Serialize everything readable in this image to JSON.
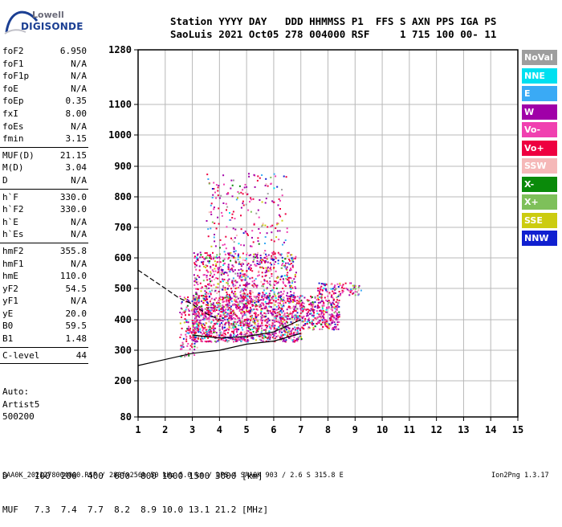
{
  "logo": {
    "line1": "Lowell",
    "line2": "DIGISONDE"
  },
  "header": {
    "line1": "Station YYYY DAY   DDD HHMMSS P1  FFS S AXN PPS IGA PS",
    "line2": "SaoLuis 2021 Oct05 278 004000 RSF     1 715 100 00- 11"
  },
  "params": [
    {
      "label": "foF2",
      "value": "6.950"
    },
    {
      "label": "foF1",
      "value": "N/A"
    },
    {
      "label": "foF1p",
      "value": "N/A"
    },
    {
      "label": "foE",
      "value": "N/A"
    },
    {
      "label": "foEp",
      "value": "0.35"
    },
    {
      "label": "fxI",
      "value": "8.00"
    },
    {
      "label": "foEs",
      "value": "N/A"
    },
    {
      "label": "fmin",
      "value": "3.15"
    },
    {
      "sep": true
    },
    {
      "label": "MUF(D)",
      "value": "21.15"
    },
    {
      "label": "M(D)",
      "value": "3.04"
    },
    {
      "label": "D",
      "value": "N/A"
    },
    {
      "sep": true
    },
    {
      "label": "h`F",
      "value": "330.0"
    },
    {
      "label": "h`F2",
      "value": "330.0"
    },
    {
      "label": "h`E",
      "value": "N/A"
    },
    {
      "label": "h`Es",
      "value": "N/A"
    },
    {
      "sep": true
    },
    {
      "label": "hmF2",
      "value": "355.8"
    },
    {
      "label": "hmF1",
      "value": "N/A"
    },
    {
      "label": "hmE",
      "value": "110.0"
    },
    {
      "label": "yF2",
      "value": "54.5"
    },
    {
      "label": "yF1",
      "value": "N/A"
    },
    {
      "label": "yE",
      "value": "20.0"
    },
    {
      "label": "B0",
      "value": "59.5"
    },
    {
      "label": "B1",
      "value": "1.48"
    },
    {
      "sep": true
    },
    {
      "label": "C-level",
      "value": "44"
    },
    {
      "sep": true
    }
  ],
  "auto": {
    "line1": "Auto:",
    "line2": "Artist5",
    "line3": "500200"
  },
  "legend": [
    {
      "label": "NoVal",
      "color": "#9e9e9e"
    },
    {
      "label": "NNE",
      "color": "#00e0f0"
    },
    {
      "label": "E",
      "color": "#3aaaf5"
    },
    {
      "label": "W",
      "color": "#a000a8"
    },
    {
      "label": "Vo-",
      "color": "#f040b0"
    },
    {
      "label": "Vo+",
      "color": "#ee0040"
    },
    {
      "label": "SSW",
      "color": "#f5b8b8"
    },
    {
      "label": "X-",
      "color": "#0a8a0a"
    },
    {
      "label": "X+",
      "color": "#7ec05a"
    },
    {
      "label": "SSE",
      "color": "#cccc10"
    },
    {
      "label": "NNW",
      "color": "#1020d0"
    }
  ],
  "dmuf": {
    "d_line": "D     100  200  400  600  800 1000 1500 3000 [km]",
    "muf_line": "MUF   7.3  7.4  7.7  8.2  8.9 10.0 13.1 21.2 [MHz]"
  },
  "footer": "SAA0K_2021278004000.RSF / 280fx256h 50 kHz 5.0 km / DPS-4 SAA0K 903 / 2.6 S 315.8 E",
  "version": "Ion2Png 1.3.17",
  "chart_data": {
    "type": "scatter",
    "x_ticks": [
      "1",
      "2",
      "3",
      "4",
      "5",
      "6",
      "7",
      "8",
      "9",
      "10",
      "11",
      "12",
      "13",
      "14",
      "15"
    ],
    "y_ticks": [
      "80",
      "200",
      "300",
      "400",
      "500",
      "600",
      "700",
      "800",
      "900",
      "1000",
      "1100",
      "1280"
    ],
    "xlim": [
      1,
      15
    ],
    "ylim": [
      80,
      1280
    ],
    "y_scale": "nonlinear (ionogram virtual height)",
    "grid": true,
    "legend_position": "right",
    "echo_regions": [
      {
        "x": [
          2.5,
          3.2
        ],
        "y": [
          280,
          480
        ],
        "density": 0.3
      },
      {
        "x": [
          3.0,
          7.0
        ],
        "y": [
          330,
          480
        ],
        "density": 0.75
      },
      {
        "x": [
          3.0,
          6.8
        ],
        "y": [
          480,
          620
        ],
        "density": 0.35
      },
      {
        "x": [
          3.5,
          6.5
        ],
        "y": [
          620,
          880
        ],
        "density": 0.08
      },
      {
        "x": [
          7.0,
          8.4
        ],
        "y": [
          370,
          480
        ],
        "density": 0.6
      },
      {
        "x": [
          7.6,
          9.2
        ],
        "y": [
          480,
          520
        ],
        "density": 0.45
      }
    ],
    "traces": [
      {
        "name": "",
        "style": "dashed",
        "x": [
          1.0,
          1.5,
          2.0,
          2.5,
          3.0,
          3.5,
          4.0
        ],
        "y": [
          560,
          530,
          500,
          470,
          450,
          420,
          400
        ]
      },
      {
        "name": "",
        "style": "solid",
        "x": [
          1.0,
          2.0,
          3.0,
          4.0,
          5.0,
          6.0,
          7.0
        ],
        "y": [
          250,
          270,
          290,
          300,
          320,
          330,
          355
        ]
      },
      {
        "name": "",
        "style": "solid",
        "x": [
          3.0,
          4.0,
          5.0,
          6.0,
          7.0
        ],
        "y": [
          350,
          340,
          345,
          360,
          400
        ]
      }
    ]
  }
}
